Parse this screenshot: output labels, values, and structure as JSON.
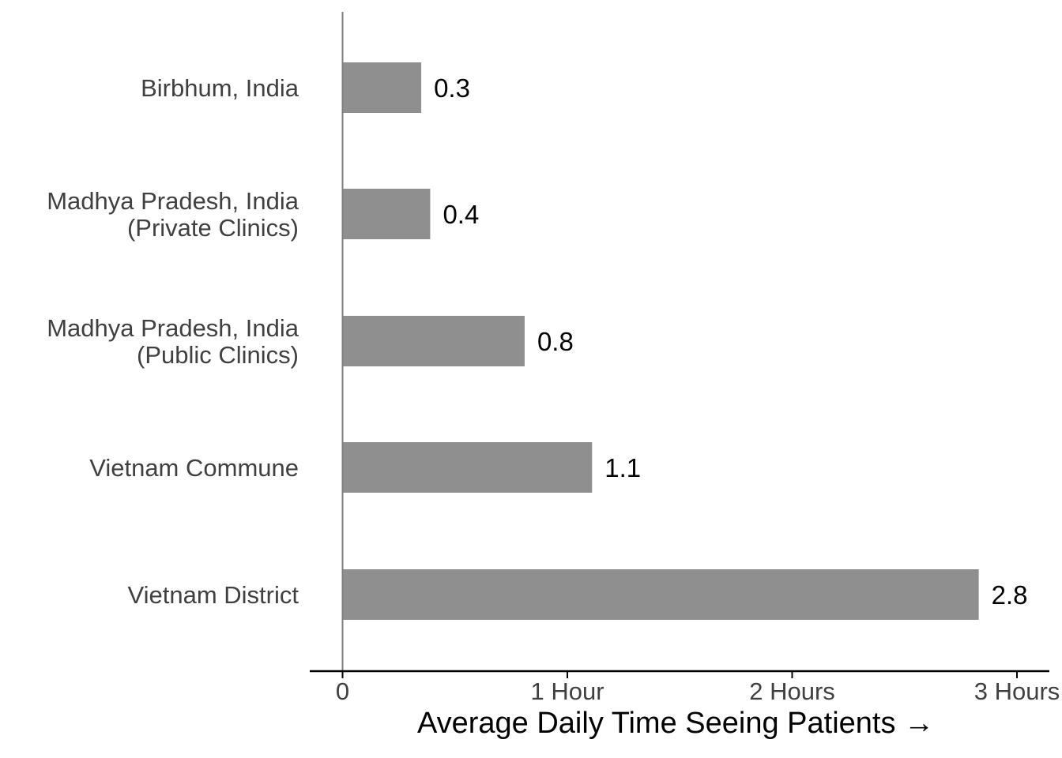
{
  "chart_data": {
    "type": "bar",
    "orientation": "horizontal",
    "categories": [
      "Birbhum, India",
      "Madhya Pradesh, India\n(Private Clinics)",
      "Madhya Pradesh, India\n(Public Clinics)",
      "Vietnam Commune",
      "Vietnam District"
    ],
    "values": [
      0.35,
      0.39,
      0.81,
      1.11,
      2.83
    ],
    "data_labels": [
      "0.3",
      "0.4",
      "0.8",
      "1.1",
      "2.8"
    ],
    "title": "",
    "xlabel": "Average Daily Time Seeing Patients  →",
    "ylabel": "",
    "xlim": [
      -0.15,
      3.15
    ],
    "x_ticks": [
      0,
      1,
      2,
      3
    ],
    "x_tick_labels": [
      "0",
      "1 Hour",
      "2 Hours",
      "3 Hours"
    ],
    "grid": false,
    "legend": "none",
    "colors": {
      "bar": "#8f8f8f",
      "axis": "#000000",
      "zero_line": "#7f7f7f",
      "category_text": "#404040",
      "label_text": "#000000"
    }
  }
}
